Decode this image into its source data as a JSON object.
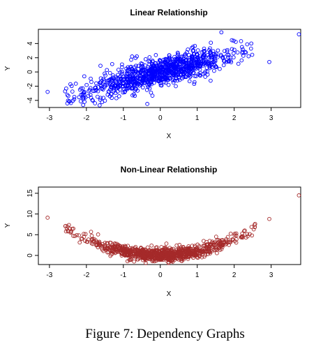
{
  "caption": "Figure 7:  Dependency Graphs",
  "chart_data": [
    {
      "type": "scatter",
      "title": "Linear Relationship",
      "xlabel": "X",
      "ylabel": "Y",
      "xlim": [
        -3.3,
        3.8
      ],
      "ylim": [
        -5,
        6
      ],
      "xticks": [
        -3,
        -2,
        -1,
        0,
        1,
        2,
        3
      ],
      "yticks": [
        -4,
        -2,
        0,
        2,
        4
      ],
      "color": "#0000ff",
      "marker": "open-circle",
      "n_points": 1000,
      "relationship": "y = 1.3x + noise",
      "extreme_points": [
        {
          "x": 3.75,
          "y": 5.3
        },
        {
          "x": -3.05,
          "y": -2.8
        },
        {
          "x": -2.05,
          "y": -4.2
        },
        {
          "x": 2.95,
          "y": 1.4
        }
      ]
    },
    {
      "type": "scatter",
      "title": "Non-Linear Relationship",
      "xlabel": "X",
      "ylabel": "Y",
      "xlim": [
        -3.3,
        3.8
      ],
      "ylim": [
        -2.2,
        16.5
      ],
      "xticks": [
        -3,
        -2,
        -1,
        0,
        1,
        2,
        3
      ],
      "yticks": [
        0,
        5,
        10,
        15
      ],
      "color": "#a52a2a",
      "marker": "open-circle",
      "n_points": 1000,
      "relationship": "y = x^2 + noise",
      "extreme_points": [
        {
          "x": 3.75,
          "y": 14.5
        },
        {
          "x": -3.05,
          "y": 9.1
        },
        {
          "x": 2.95,
          "y": 8.8
        },
        {
          "x": 0.1,
          "y": -2.8
        }
      ]
    }
  ]
}
